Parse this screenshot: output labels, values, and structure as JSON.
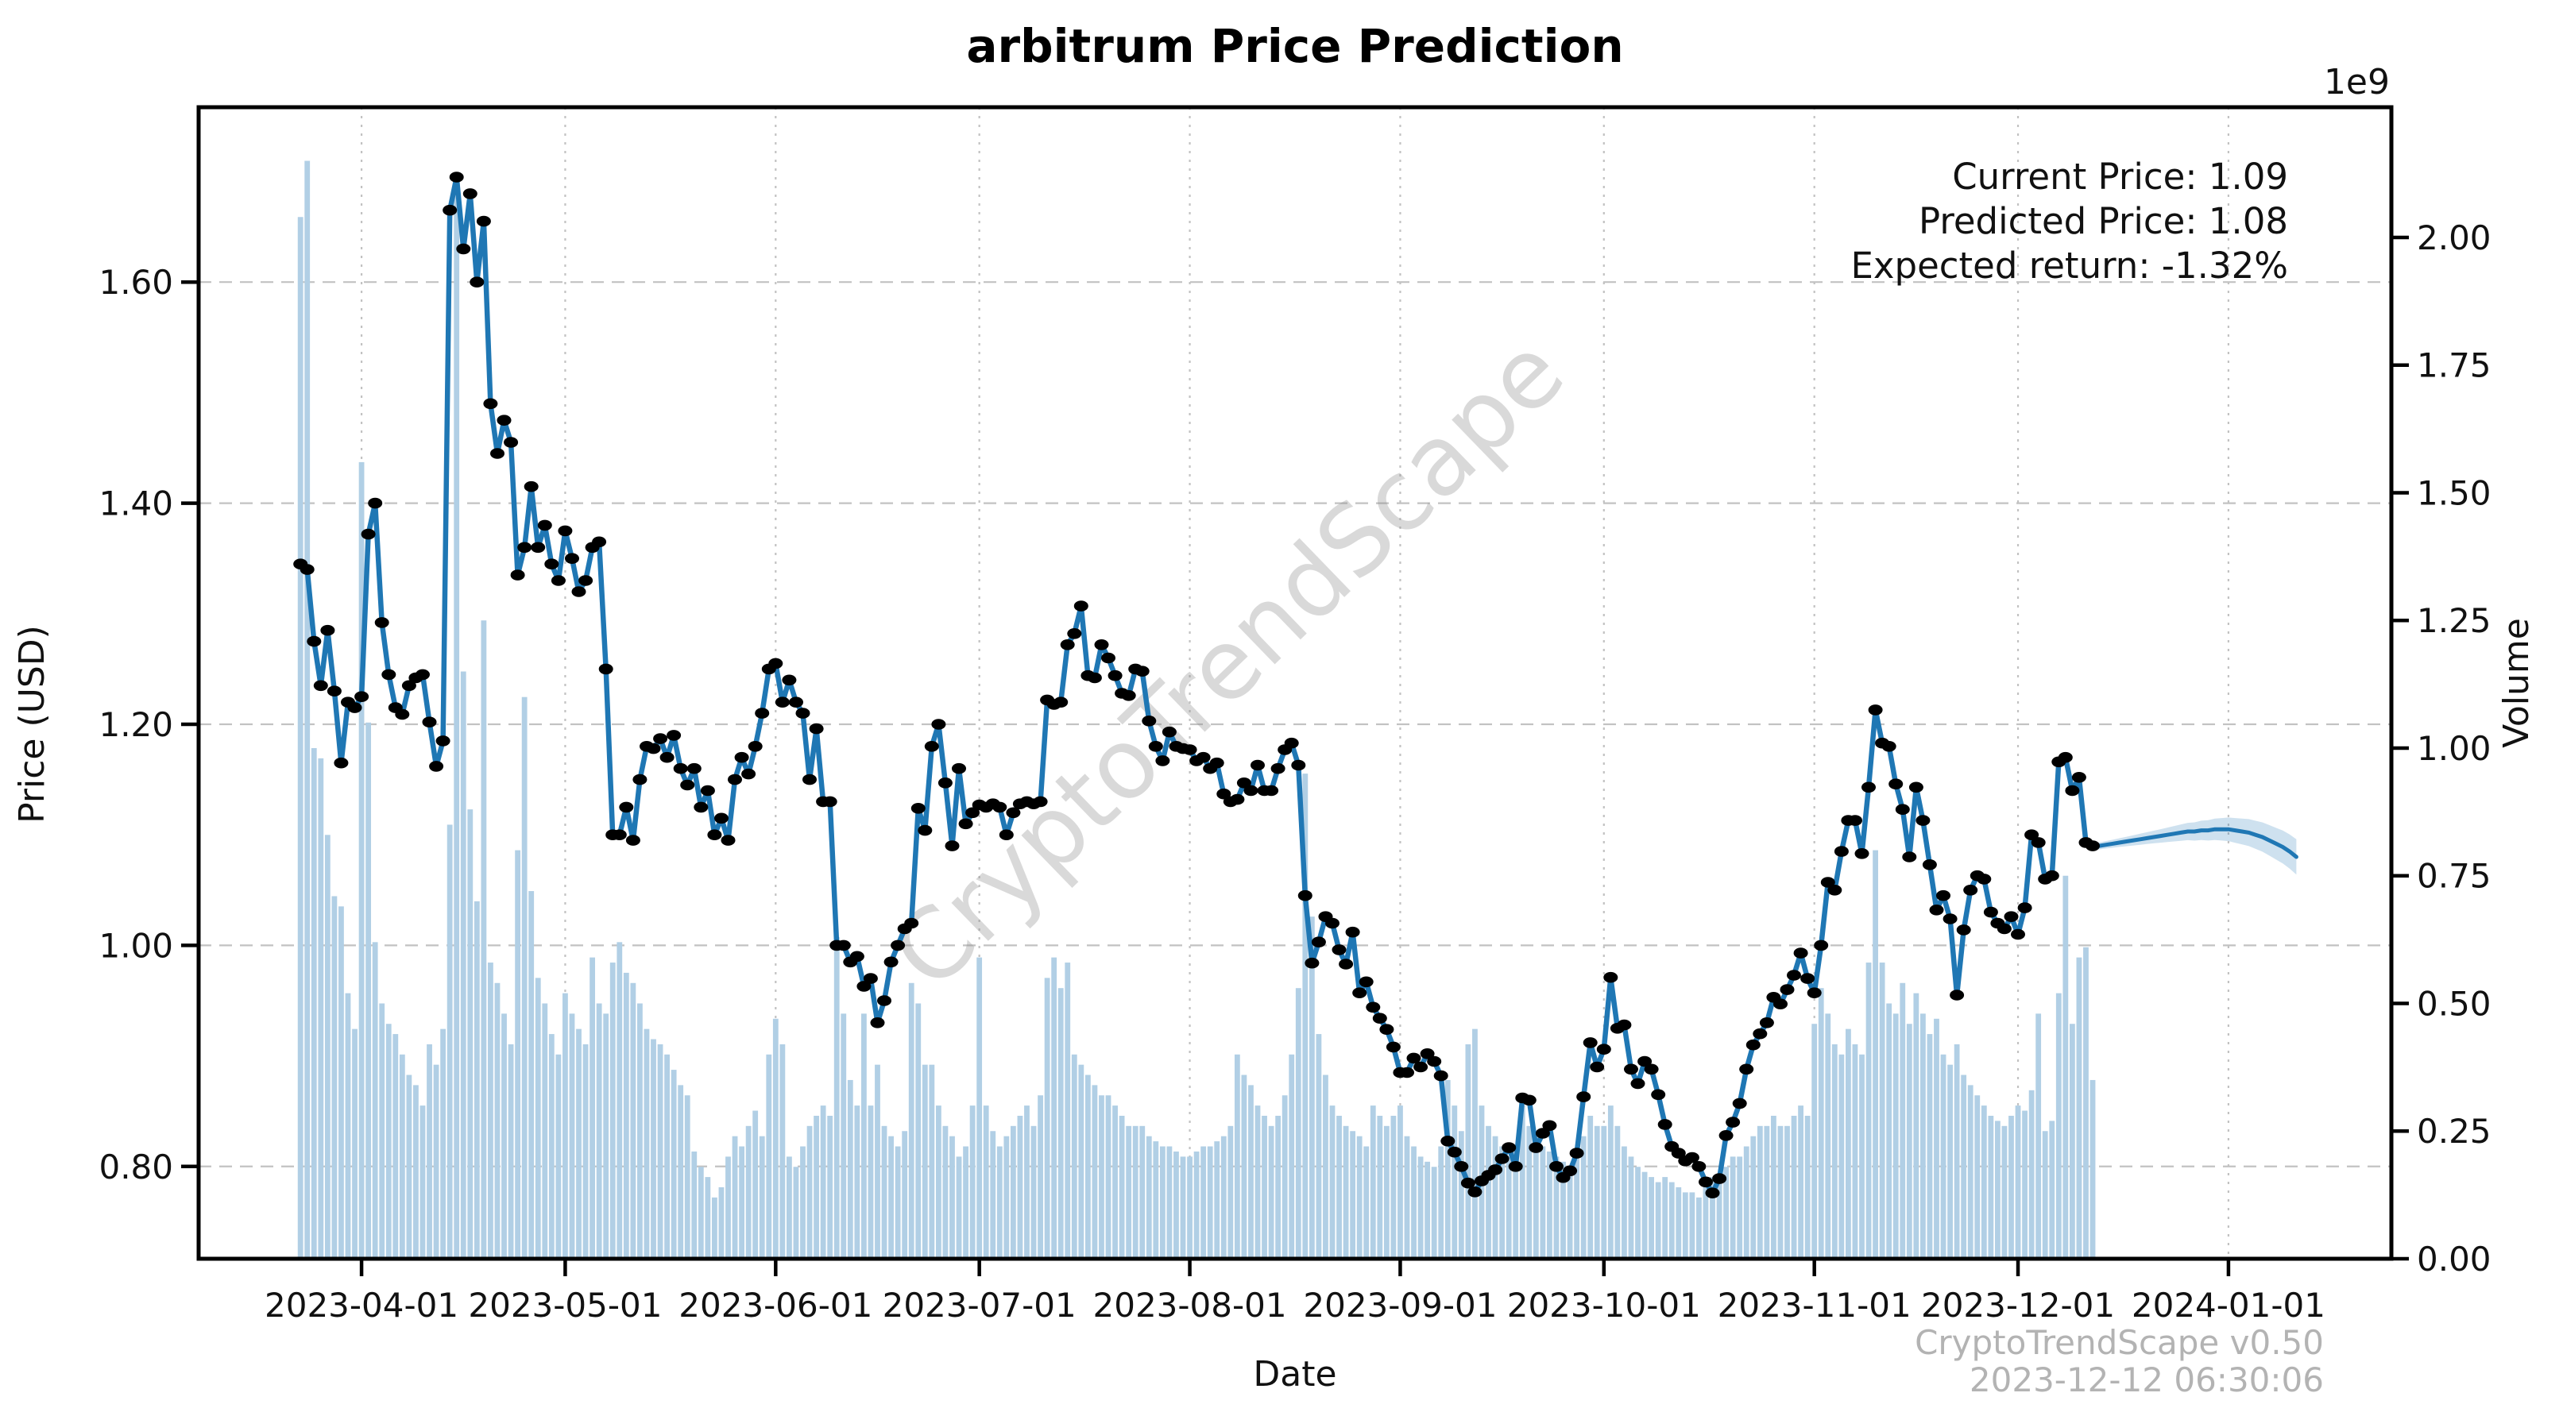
{
  "title": "arbitrum Price Prediction",
  "annotation": {
    "current": "Current Price: 1.09",
    "predicted": "Predicted Price: 1.08",
    "expected": "Expected return: -1.32%"
  },
  "watermark": "CryptoTrendScape",
  "footer": {
    "line1": "CryptoTrendScape v0.50",
    "line2": "2023-12-12 06:30:06"
  },
  "axes": {
    "x_label": "Date",
    "y_left_label": "Price (USD)",
    "y_right_label": "Volume",
    "right_offset_multiplier": "1e9"
  },
  "chart_data": {
    "type": "line",
    "title": "arbitrum Price Prediction",
    "xlabel": "Date",
    "ylabel": "Price (USD)",
    "ylabel2": "Volume",
    "volume_unit": "1e9",
    "current_price": 1.09,
    "predicted_price": 1.08,
    "expected_return_pct": -1.32,
    "grid": true,
    "x_domain": [
      "2023-03-08",
      "2024-01-25"
    ],
    "price_domain": [
      0.7165,
      1.7582
    ],
    "volume_domain_e9": [
      0,
      2.255
    ],
    "x_ticks": [
      "2023-04-01",
      "2023-05-01",
      "2023-06-01",
      "2023-07-01",
      "2023-08-01",
      "2023-09-01",
      "2023-10-01",
      "2023-11-01",
      "2023-12-01",
      "2024-01-01"
    ],
    "price_ticks": [
      {
        "v": 0.8,
        "label": "0.80"
      },
      {
        "v": 1.0,
        "label": "1.00"
      },
      {
        "v": 1.2,
        "label": "1.20"
      },
      {
        "v": 1.4,
        "label": "1.40"
      },
      {
        "v": 1.6,
        "label": "1.60"
      }
    ],
    "volume_ticks": [
      {
        "v": 0.0,
        "label": "0.00"
      },
      {
        "v": 0.25,
        "label": "0.25"
      },
      {
        "v": 0.5,
        "label": "0.50"
      },
      {
        "v": 0.75,
        "label": "0.75"
      },
      {
        "v": 1.0,
        "label": "1.00"
      },
      {
        "v": 1.25,
        "label": "1.25"
      },
      {
        "v": 1.5,
        "label": "1.50"
      },
      {
        "v": 1.75,
        "label": "1.75"
      },
      {
        "v": 2.0,
        "label": "2.00"
      }
    ],
    "colors": {
      "line": "#1f77b4",
      "marker": "#000000",
      "bars": "#b1cfe5",
      "band": "#1f77b4",
      "grid": "#c2c2c2"
    },
    "series": [
      {
        "name": "price",
        "type": "line+markers",
        "start_date": "2023-03-23",
        "freq": "daily",
        "values": [
          1.345,
          1.34,
          1.275,
          1.235,
          1.285,
          1.23,
          1.165,
          1.22,
          1.215,
          1.225,
          1.372,
          1.4,
          1.292,
          1.245,
          1.215,
          1.209,
          1.235,
          1.242,
          1.245,
          1.202,
          1.162,
          1.185,
          1.665,
          1.695,
          1.63,
          1.68,
          1.6,
          1.655,
          1.49,
          1.445,
          1.475,
          1.455,
          1.335,
          1.36,
          1.415,
          1.36,
          1.38,
          1.345,
          1.33,
          1.375,
          1.35,
          1.32,
          1.33,
          1.36,
          1.365,
          1.25,
          1.1,
          1.1,
          1.125,
          1.095,
          1.15,
          1.18,
          1.178,
          1.187,
          1.17,
          1.19,
          1.16,
          1.145,
          1.16,
          1.125,
          1.14,
          1.1,
          1.115,
          1.095,
          1.15,
          1.17,
          1.155,
          1.18,
          1.21,
          1.25,
          1.255,
          1.22,
          1.24,
          1.22,
          1.21,
          1.15,
          1.196,
          1.13,
          1.13,
          1.0,
          1.0,
          0.985,
          0.99,
          0.963,
          0.97,
          0.93,
          0.95,
          0.985,
          1.0,
          1.015,
          1.02,
          1.124,
          1.104,
          1.18,
          1.2,
          1.147,
          1.09,
          1.16,
          1.11,
          1.12,
          1.127,
          1.125,
          1.128,
          1.125,
          1.1,
          1.12,
          1.128,
          1.13,
          1.128,
          1.13,
          1.222,
          1.218,
          1.22,
          1.272,
          1.282,
          1.307,
          1.244,
          1.242,
          1.272,
          1.26,
          1.244,
          1.228,
          1.226,
          1.25,
          1.248,
          1.203,
          1.18,
          1.167,
          1.193,
          1.18,
          1.178,
          1.177,
          1.167,
          1.17,
          1.16,
          1.165,
          1.137,
          1.13,
          1.132,
          1.147,
          1.14,
          1.163,
          1.14,
          1.14,
          1.16,
          1.177,
          1.183,
          1.163,
          1.045,
          0.984,
          1.003,
          1.026,
          1.02,
          0.996,
          0.983,
          1.012,
          0.957,
          0.967,
          0.944,
          0.934,
          0.924,
          0.908,
          0.885,
          0.885,
          0.898,
          0.89,
          0.902,
          0.895,
          0.882,
          0.823,
          0.813,
          0.8,
          0.785,
          0.777,
          0.787,
          0.792,
          0.797,
          0.807,
          0.817,
          0.8,
          0.862,
          0.86,
          0.817,
          0.83,
          0.837,
          0.8,
          0.79,
          0.796,
          0.812,
          0.863,
          0.912,
          0.89,
          0.906,
          0.971,
          0.925,
          0.928,
          0.888,
          0.875,
          0.895,
          0.888,
          0.865,
          0.838,
          0.818,
          0.812,
          0.805,
          0.808,
          0.8,
          0.786,
          0.776,
          0.789,
          0.828,
          0.84,
          0.857,
          0.888,
          0.91,
          0.92,
          0.93,
          0.953,
          0.947,
          0.96,
          0.973,
          0.993,
          0.97,
          0.957,
          1.0,
          1.057,
          1.05,
          1.085,
          1.113,
          1.113,
          1.083,
          1.143,
          1.213,
          1.183,
          1.18,
          1.146,
          1.123,
          1.08,
          1.143,
          1.113,
          1.073,
          1.032,
          1.045,
          1.024,
          0.955,
          1.014,
          1.05,
          1.063,
          1.06,
          1.03,
          1.02,
          1.015,
          1.026,
          1.01,
          1.034,
          1.1,
          1.093,
          1.06,
          1.063,
          1.166,
          1.17,
          1.14,
          1.152,
          1.093,
          1.09
        ]
      },
      {
        "name": "volume",
        "type": "bar",
        "start_date": "2023-03-23",
        "freq": "daily",
        "unit": "1e9",
        "values": [
          2.04,
          2.15,
          1.0,
          0.98,
          0.83,
          0.71,
          0.69,
          0.52,
          0.45,
          1.56,
          1.05,
          0.62,
          0.5,
          0.46,
          0.44,
          0.4,
          0.36,
          0.34,
          0.3,
          0.42,
          0.38,
          0.45,
          0.85,
          2.1,
          1.15,
          0.88,
          0.7,
          1.25,
          0.58,
          0.54,
          0.48,
          0.42,
          0.8,
          1.1,
          0.72,
          0.55,
          0.5,
          0.44,
          0.4,
          0.52,
          0.48,
          0.45,
          0.42,
          0.59,
          0.5,
          0.48,
          0.58,
          0.62,
          0.56,
          0.54,
          0.5,
          0.45,
          0.43,
          0.42,
          0.4,
          0.37,
          0.34,
          0.32,
          0.21,
          0.18,
          0.16,
          0.12,
          0.14,
          0.2,
          0.24,
          0.22,
          0.26,
          0.29,
          0.24,
          0.4,
          0.47,
          0.42,
          0.2,
          0.18,
          0.22,
          0.26,
          0.28,
          0.3,
          0.28,
          0.63,
          0.48,
          0.35,
          0.3,
          0.48,
          0.3,
          0.38,
          0.26,
          0.24,
          0.22,
          0.25,
          0.54,
          0.5,
          0.38,
          0.38,
          0.3,
          0.26,
          0.24,
          0.2,
          0.22,
          0.3,
          0.59,
          0.3,
          0.25,
          0.22,
          0.24,
          0.26,
          0.28,
          0.3,
          0.26,
          0.32,
          0.55,
          0.59,
          0.53,
          0.58,
          0.4,
          0.38,
          0.36,
          0.34,
          0.32,
          0.32,
          0.3,
          0.28,
          0.26,
          0.26,
          0.26,
          0.24,
          0.23,
          0.22,
          0.22,
          0.21,
          0.2,
          0.2,
          0.21,
          0.22,
          0.22,
          0.23,
          0.24,
          0.26,
          0.4,
          0.36,
          0.34,
          0.3,
          0.28,
          0.26,
          0.28,
          0.32,
          0.4,
          0.53,
          0.95,
          0.67,
          0.44,
          0.36,
          0.3,
          0.28,
          0.26,
          0.25,
          0.24,
          0.22,
          0.3,
          0.28,
          0.26,
          0.28,
          0.3,
          0.24,
          0.22,
          0.2,
          0.19,
          0.18,
          0.22,
          0.35,
          0.3,
          0.25,
          0.42,
          0.45,
          0.3,
          0.26,
          0.24,
          0.22,
          0.2,
          0.22,
          0.3,
          0.26,
          0.24,
          0.22,
          0.21,
          0.2,
          0.19,
          0.18,
          0.2,
          0.24,
          0.28,
          0.26,
          0.26,
          0.3,
          0.26,
          0.22,
          0.2,
          0.18,
          0.17,
          0.16,
          0.15,
          0.16,
          0.15,
          0.14,
          0.13,
          0.13,
          0.12,
          0.14,
          0.16,
          0.15,
          0.18,
          0.2,
          0.2,
          0.22,
          0.24,
          0.26,
          0.26,
          0.28,
          0.26,
          0.26,
          0.28,
          0.3,
          0.28,
          0.46,
          0.53,
          0.48,
          0.42,
          0.4,
          0.45,
          0.42,
          0.4,
          0.58,
          0.8,
          0.58,
          0.5,
          0.48,
          0.54,
          0.46,
          0.52,
          0.48,
          0.44,
          0.47,
          0.4,
          0.38,
          0.42,
          0.36,
          0.34,
          0.32,
          0.3,
          0.28,
          0.27,
          0.26,
          0.28,
          0.3,
          0.29,
          0.33,
          0.48,
          0.25,
          0.27,
          0.52,
          0.75,
          0.46,
          0.59,
          0.61,
          0.35
        ]
      },
      {
        "name": "predicted",
        "type": "line+band",
        "start_date": "2023-12-12",
        "freq": "daily",
        "band_halfwidth_start": 0.003,
        "band_halfwidth_end": 0.016,
        "values": [
          1.09,
          1.09,
          1.091,
          1.092,
          1.093,
          1.094,
          1.095,
          1.096,
          1.097,
          1.098,
          1.099,
          1.1,
          1.101,
          1.102,
          1.103,
          1.103,
          1.104,
          1.104,
          1.105,
          1.105,
          1.105,
          1.104,
          1.103,
          1.102,
          1.1,
          1.098,
          1.095,
          1.092,
          1.089,
          1.085,
          1.08
        ]
      }
    ]
  }
}
